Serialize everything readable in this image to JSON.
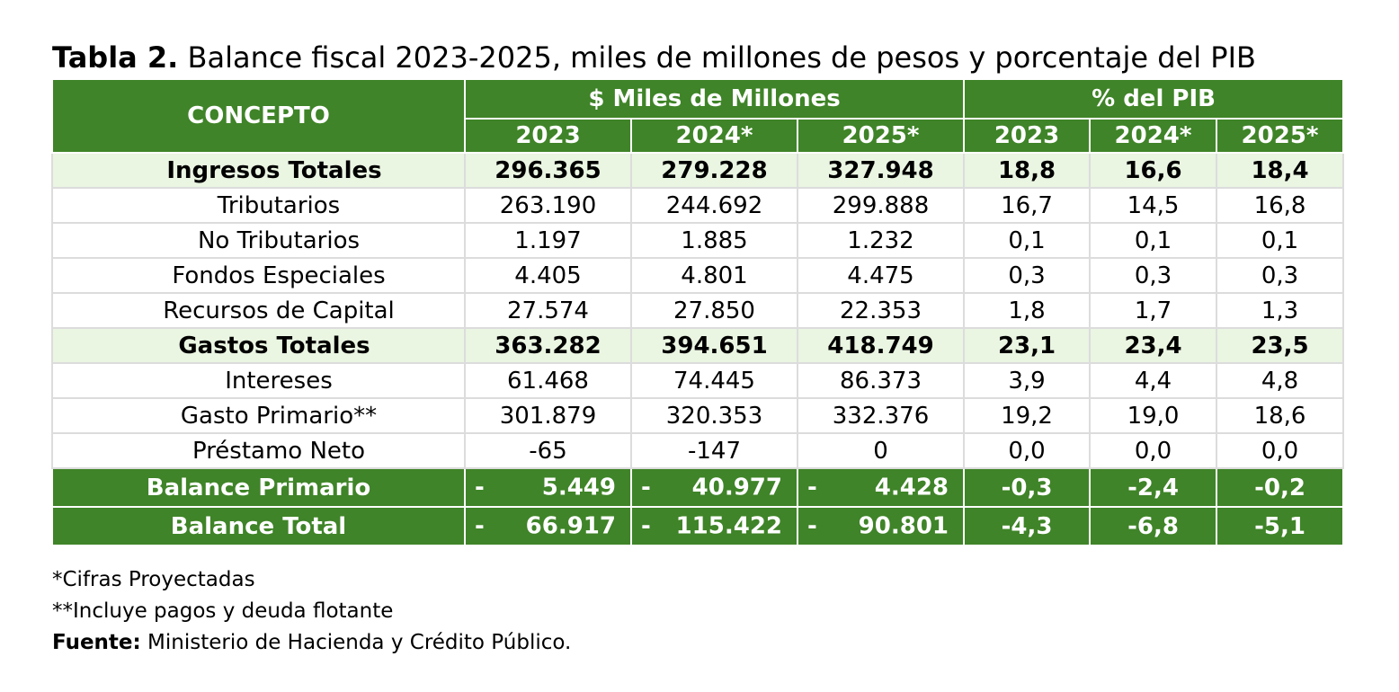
{
  "title": {
    "prefix": "Tabla 2.",
    "text": "Balance fiscal 2023-2025, miles de millones de pesos y porcentaje del PIB"
  },
  "table": {
    "concept_header": "CONCEPTO",
    "group_headers": [
      "$ Miles de Millones",
      "% del PIB"
    ],
    "year_headers": [
      "2023",
      "2024*",
      "2025*",
      "2023",
      "2024*",
      "2025*"
    ],
    "rows": [
      {
        "label": "Ingresos Totales",
        "values": [
          "296.365",
          "279.228",
          "327.948",
          "18,8",
          "16,6",
          "18,4"
        ]
      },
      {
        "label": "Tributarios",
        "values": [
          "263.190",
          "244.692",
          "299.888",
          "16,7",
          "14,5",
          "16,8"
        ]
      },
      {
        "label": "No Tributarios",
        "values": [
          "1.197",
          "1.885",
          "1.232",
          "0,1",
          "0,1",
          "0,1"
        ]
      },
      {
        "label": "Fondos Especiales",
        "values": [
          "4.405",
          "4.801",
          "4.475",
          "0,3",
          "0,3",
          "0,3"
        ]
      },
      {
        "label": "Recursos de Capital",
        "values": [
          "27.574",
          "27.850",
          "22.353",
          "1,8",
          "1,7",
          "1,3"
        ]
      },
      {
        "label": "Gastos Totales",
        "values": [
          "363.282",
          "394.651",
          "418.749",
          "23,1",
          "23,4",
          "23,5"
        ]
      },
      {
        "label": "Intereses",
        "values": [
          "61.468",
          "74.445",
          "86.373",
          "3,9",
          "4,4",
          "4,8"
        ]
      },
      {
        "label": "Gasto Primario**",
        "values": [
          "301.879",
          "320.353",
          "332.376",
          "19,2",
          "19,0",
          "18,6"
        ]
      },
      {
        "label": "Préstamo Neto",
        "values": [
          "-65",
          "-147",
          "0",
          "0,0",
          "0,0",
          "0,0"
        ]
      }
    ],
    "balance_rows": [
      {
        "label": "Balance Primario",
        "dash": "-",
        "values": [
          "5.449",
          "40.977",
          "4.428"
        ],
        "pib": [
          "-0,3",
          "-2,4",
          "-0,2"
        ]
      },
      {
        "label": "Balance Total",
        "dash": "-",
        "values": [
          "66.917",
          "115.422",
          "90.801"
        ],
        "pib": [
          "-4,3",
          "-6,8",
          "-5,1"
        ]
      }
    ]
  },
  "notes": {
    "projected": "*Cifras Proyectadas",
    "includes": "**Incluye pagos y deuda flotante",
    "source_label": "Fuente:",
    "source_text": "Ministerio de Hacienda y Crédito Público."
  },
  "colors": {
    "header_green": "#3f8428",
    "total_row_tint": "#eaf5e2"
  }
}
